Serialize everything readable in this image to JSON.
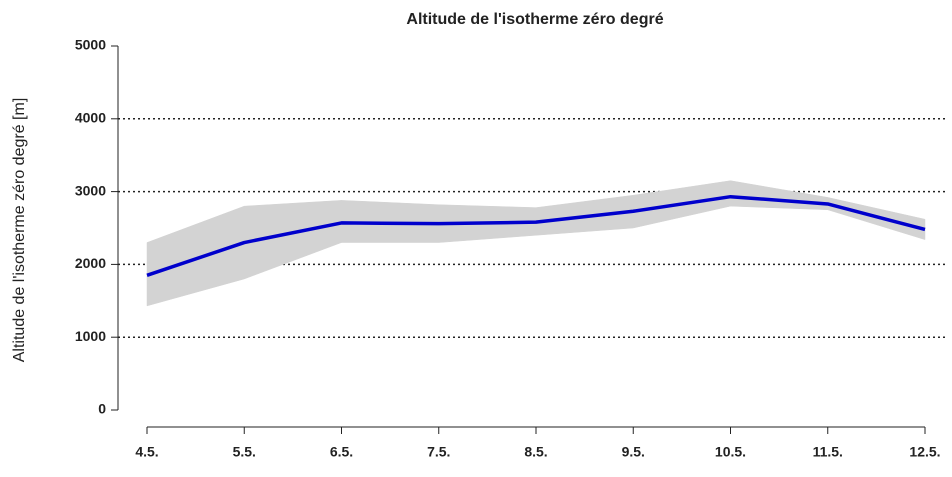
{
  "chart_data": {
    "type": "line-band",
    "title": "Altitude de l'isotherme zéro degré",
    "ylabel": "Altitude de l'isotherme zéro degré [m]",
    "categories": [
      "4.5.",
      "5.5.",
      "6.5.",
      "7.5.",
      "8.5.",
      "9.5.",
      "10.5.",
      "11.5.",
      "12.5."
    ],
    "values": [
      1850,
      2300,
      2570,
      2560,
      2580,
      2730,
      2930,
      2830,
      2480
    ],
    "lower": [
      1430,
      1800,
      2300,
      2300,
      2400,
      2500,
      2800,
      2750,
      2340
    ],
    "upper": [
      2300,
      2800,
      2880,
      2820,
      2780,
      2950,
      3150,
      2920,
      2620
    ],
    "color": "#0000cc",
    "band_color": "#d3d3d3",
    "ylim": [
      0,
      5000
    ],
    "yticks": [
      0,
      1000,
      2000,
      3000,
      4000,
      5000
    ],
    "grid": true
  }
}
